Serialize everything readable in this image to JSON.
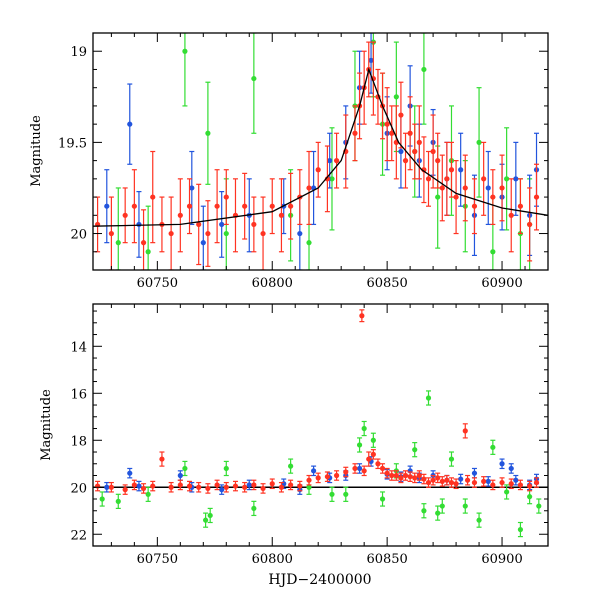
{
  "chart_data": [
    {
      "type": "scatter",
      "title": "",
      "xlabel": "",
      "ylabel": "Magnitude",
      "xlim": [
        60722,
        60920
      ],
      "ylim": [
        20.2,
        18.9
      ],
      "y_inverted": true,
      "x_ticks": [
        60750,
        60800,
        60850,
        60900
      ],
      "y_ticks": [
        19,
        19.5,
        20
      ],
      "y_tick_labels": [
        "19",
        "19.5",
        "20"
      ],
      "x_tick_labels": [
        "60750",
        "60800",
        "60850",
        "60900"
      ],
      "grid": false,
      "legend": "none",
      "model_curve": {
        "peak_x": 60842,
        "peak_mag": 19.1,
        "base_mag": 20.0,
        "x": [
          60722,
          60760,
          60800,
          60820,
          60830,
          60838,
          60842,
          60848,
          60855,
          60865,
          60880,
          60900,
          60920
        ],
        "y": [
          19.96,
          19.95,
          19.88,
          19.75,
          19.6,
          19.3,
          19.1,
          19.3,
          19.5,
          19.65,
          19.78,
          19.86,
          19.9
        ]
      },
      "series": [
        {
          "band": "red",
          "color": "#ff3322",
          "x": [
            60724,
            60730,
            60736,
            60740,
            60744,
            60748,
            60752,
            60756,
            60760,
            60764,
            60768,
            60772,
            60776,
            60780,
            60784,
            60788,
            60792,
            60796,
            60800,
            60804,
            60808,
            60812,
            60816,
            60820,
            60824,
            60828,
            60832,
            60836,
            60838,
            60840,
            60842,
            60844,
            60846,
            60848,
            60850,
            60852,
            60854,
            60856,
            60858,
            60860,
            60862,
            60864,
            60866,
            60868,
            60870,
            60872,
            60874,
            60876,
            60878,
            60880,
            60884,
            60888,
            60892,
            60896,
            60900,
            60904,
            60908,
            60912,
            60915
          ],
          "y": [
            19.95,
            20.0,
            19.9,
            19.85,
            20.05,
            19.8,
            19.95,
            20.0,
            19.9,
            19.85,
            19.95,
            20.0,
            19.85,
            19.8,
            19.9,
            19.85,
            19.95,
            20.0,
            19.85,
            19.9,
            19.85,
            19.8,
            19.75,
            19.65,
            19.7,
            19.6,
            19.55,
            19.45,
            19.3,
            19.2,
            19.1,
            19.15,
            19.25,
            19.3,
            19.4,
            19.45,
            19.5,
            19.35,
            19.6,
            19.45,
            19.55,
            19.5,
            19.65,
            19.7,
            19.55,
            19.6,
            19.75,
            19.7,
            19.65,
            19.8,
            19.75,
            19.85,
            19.7,
            19.8,
            19.75,
            19.9,
            19.85,
            19.95,
            19.8
          ],
          "err": [
            0.15,
            0.2,
            0.15,
            0.2,
            0.18,
            0.25,
            0.15,
            0.2,
            0.2,
            0.15,
            0.22,
            0.18,
            0.2,
            0.15,
            0.2,
            0.18,
            0.15,
            0.2,
            0.15,
            0.2,
            0.18,
            0.15,
            0.2,
            0.15,
            0.18,
            0.15,
            0.2,
            0.15,
            0.18,
            0.2,
            0.15,
            0.2,
            0.15,
            0.18,
            0.2,
            0.15,
            0.2,
            0.18,
            0.15,
            0.2,
            0.15,
            0.2,
            0.18,
            0.15,
            0.2,
            0.15,
            0.18,
            0.2,
            0.15,
            0.2,
            0.18,
            0.15,
            0.2,
            0.15,
            0.18,
            0.2,
            0.15,
            0.2,
            0.18
          ]
        },
        {
          "band": "blue",
          "color": "#2255dd",
          "x": [
            60728,
            60738,
            60742,
            60765,
            60770,
            60778,
            60790,
            60805,
            60812,
            60818,
            60825,
            60832,
            60838,
            60843,
            60850,
            60856,
            60860,
            60864,
            60870,
            60876,
            60882,
            60888,
            60894,
            60900,
            60906,
            60912,
            60915
          ],
          "y": [
            19.85,
            19.4,
            19.95,
            19.75,
            20.05,
            19.95,
            19.9,
            19.85,
            20.0,
            19.75,
            19.6,
            19.5,
            19.2,
            19.05,
            19.45,
            19.55,
            19.3,
            19.6,
            19.5,
            19.7,
            19.65,
            19.9,
            19.75,
            19.8,
            19.7,
            19.9,
            19.65
          ],
          "err": [
            0.2,
            0.22,
            0.18,
            0.2,
            0.2,
            0.18,
            0.2,
            0.15,
            0.2,
            0.2,
            0.15,
            0.2,
            0.2,
            0.18,
            0.2,
            0.2,
            0.22,
            0.2,
            0.18,
            0.2,
            0.2,
            0.22,
            0.2,
            0.18,
            0.2,
            0.22,
            0.2
          ]
        },
        {
          "band": "green",
          "color": "#33dd33",
          "x": [
            60733,
            60746,
            60762,
            60772,
            60780,
            60792,
            60808,
            60816,
            60826,
            60836,
            60844,
            60848,
            60854,
            60862,
            60866,
            60872,
            60878,
            60884,
            60890,
            60896,
            60902,
            60908,
            60912
          ],
          "y": [
            20.05,
            20.1,
            19.0,
            19.45,
            20.0,
            19.15,
            19.9,
            20.05,
            19.7,
            19.3,
            18.95,
            19.4,
            19.25,
            19.55,
            19.1,
            19.8,
            19.6,
            19.85,
            19.5,
            20.1,
            19.7,
            20.0,
            19.95
          ],
          "err": [
            0.3,
            0.25,
            0.3,
            0.28,
            0.3,
            0.3,
            0.25,
            0.3,
            0.28,
            0.3,
            0.3,
            0.28,
            0.3,
            0.25,
            0.3,
            0.28,
            0.3,
            0.25,
            0.3,
            0.3,
            0.28,
            0.3,
            0.25
          ]
        }
      ]
    },
    {
      "type": "scatter",
      "title": "",
      "xlabel": "HJD−2400000",
      "ylabel": "Magnitude",
      "xlim": [
        60722,
        60920
      ],
      "ylim": [
        22.5,
        12.2
      ],
      "y_inverted": true,
      "x_ticks": [
        60750,
        60800,
        60850,
        60900
      ],
      "y_ticks": [
        14,
        16,
        18,
        20,
        22
      ],
      "x_tick_labels": [
        "60750",
        "60800",
        "60850",
        "60900"
      ],
      "y_tick_labels": [
        "14",
        "16",
        "18",
        "20",
        "22"
      ],
      "grid": false,
      "legend": "none",
      "reference_line_mag": 20.0,
      "series": [
        {
          "band": "red",
          "color": "#ff3322",
          "x": [
            60724,
            60730,
            60736,
            60740,
            60744,
            60748,
            60752,
            60756,
            60760,
            60764,
            60768,
            60772,
            60776,
            60780,
            60784,
            60788,
            60792,
            60796,
            60800,
            60804,
            60808,
            60812,
            60816,
            60820,
            60824,
            60828,
            60832,
            60836,
            60839,
            60840,
            60842,
            60844,
            60846,
            60848,
            60850,
            60852,
            60854,
            60856,
            60858,
            60860,
            60862,
            60864,
            60866,
            60868,
            60870,
            60872,
            60874,
            60876,
            60878,
            60880,
            60884,
            60885,
            60888,
            60892,
            60896,
            60900,
            60904,
            60908,
            60912,
            60915
          ],
          "y": [
            19.95,
            20.0,
            20.1,
            19.9,
            20.05,
            19.95,
            18.8,
            20.0,
            19.9,
            19.95,
            20.0,
            20.05,
            19.9,
            20.0,
            19.95,
            20.0,
            19.9,
            20.05,
            19.85,
            20.0,
            19.9,
            19.95,
            19.7,
            19.6,
            19.55,
            19.5,
            19.35,
            19.2,
            12.7,
            19.3,
            18.8,
            18.6,
            19.0,
            19.2,
            19.4,
            19.5,
            19.5,
            19.6,
            19.5,
            19.55,
            19.6,
            19.5,
            19.65,
            19.8,
            19.7,
            19.6,
            19.75,
            19.7,
            19.8,
            19.85,
            17.6,
            19.7,
            19.8,
            19.75,
            19.9,
            19.8,
            19.85,
            19.9,
            19.95,
            19.8
          ],
          "err": [
            0.2,
            0.2,
            0.2,
            0.2,
            0.2,
            0.2,
            0.3,
            0.2,
            0.2,
            0.2,
            0.2,
            0.2,
            0.2,
            0.2,
            0.2,
            0.2,
            0.2,
            0.2,
            0.2,
            0.2,
            0.2,
            0.2,
            0.2,
            0.2,
            0.2,
            0.2,
            0.2,
            0.2,
            0.25,
            0.2,
            0.3,
            0.2,
            0.2,
            0.2,
            0.2,
            0.2,
            0.2,
            0.2,
            0.2,
            0.2,
            0.2,
            0.2,
            0.2,
            0.2,
            0.2,
            0.2,
            0.2,
            0.2,
            0.2,
            0.2,
            0.3,
            0.2,
            0.2,
            0.2,
            0.2,
            0.2,
            0.2,
            0.2,
            0.2,
            0.2
          ]
        },
        {
          "band": "blue",
          "color": "#2255dd",
          "x": [
            60728,
            60738,
            60742,
            60760,
            60765,
            60778,
            60790,
            60805,
            60812,
            60818,
            60825,
            60832,
            60838,
            60843,
            60850,
            60856,
            60860,
            60864,
            60870,
            60876,
            60882,
            60888,
            60894,
            60900,
            60904,
            60906,
            60912,
            60915
          ],
          "y": [
            20.0,
            19.4,
            19.95,
            19.5,
            20.0,
            20.1,
            19.9,
            19.85,
            20.1,
            19.3,
            19.6,
            19.5,
            19.2,
            18.9,
            19.45,
            19.55,
            19.3,
            19.6,
            19.5,
            19.7,
            19.65,
            19.4,
            19.75,
            19.0,
            19.2,
            19.7,
            19.9,
            19.65
          ],
          "err": [
            0.2,
            0.2,
            0.2,
            0.2,
            0.2,
            0.2,
            0.2,
            0.2,
            0.2,
            0.2,
            0.2,
            0.2,
            0.2,
            0.2,
            0.2,
            0.2,
            0.2,
            0.2,
            0.2,
            0.2,
            0.2,
            0.2,
            0.2,
            0.2,
            0.2,
            0.2,
            0.2,
            0.2
          ]
        },
        {
          "band": "green",
          "color": "#33dd33",
          "x": [
            60726,
            60733,
            60746,
            60762,
            60771,
            60773,
            60780,
            60792,
            60808,
            60816,
            60826,
            60832,
            60838,
            60840,
            60844,
            60848,
            60854,
            60862,
            60866,
            60868,
            60872,
            60874,
            60878,
            60884,
            60890,
            60896,
            60902,
            60908,
            60912,
            60916
          ],
          "y": [
            20.5,
            20.6,
            20.3,
            19.2,
            21.4,
            21.2,
            19.2,
            20.9,
            19.1,
            20.0,
            20.3,
            20.3,
            18.2,
            17.5,
            18.0,
            20.5,
            19.3,
            18.4,
            21.0,
            16.2,
            21.1,
            20.8,
            18.8,
            20.8,
            21.4,
            18.3,
            20.2,
            21.8,
            20.4,
            20.8
          ],
          "err": [
            0.3,
            0.3,
            0.3,
            0.3,
            0.3,
            0.3,
            0.3,
            0.3,
            0.3,
            0.3,
            0.3,
            0.3,
            0.3,
            0.3,
            0.3,
            0.3,
            0.3,
            0.3,
            0.3,
            0.3,
            0.3,
            0.3,
            0.3,
            0.3,
            0.3,
            0.3,
            0.3,
            0.3,
            0.3,
            0.3
          ]
        }
      ]
    }
  ]
}
